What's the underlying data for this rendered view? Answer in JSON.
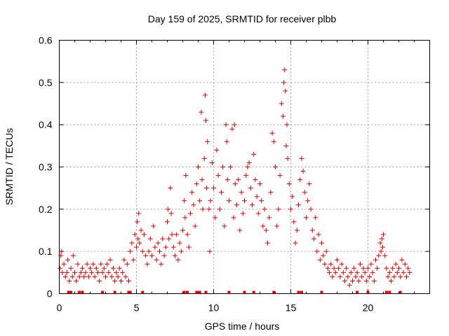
{
  "chart_data": {
    "type": "scatter",
    "title": "Day 159 of 2025, SRMTID for receiver plbb",
    "xlabel": "GPS time / hours",
    "ylabel": "SRMTID / TECUs",
    "xlim": [
      0,
      24
    ],
    "ylim": [
      0,
      0.6
    ],
    "xticks": [
      0,
      5,
      10,
      15,
      20
    ],
    "yticks": [
      0,
      0.1,
      0.2,
      0.3,
      0.4,
      0.5,
      0.6
    ],
    "xtick_labels": [
      "0",
      "5",
      "10",
      "15",
      "20"
    ],
    "ytick_labels": [
      "0",
      "0.1",
      "0.2",
      "0.3",
      "0.4",
      "0.5",
      "0.6"
    ],
    "grid": true,
    "marker": "plus",
    "marker_color": "#e00000",
    "series": [
      {
        "name": "SRMTID",
        "points": [
          [
            0.05,
            0.06
          ],
          [
            0.1,
            0.09
          ],
          [
            0.15,
            0.1
          ],
          [
            0.2,
            0.05
          ],
          [
            0.3,
            0.07
          ],
          [
            0.4,
            0.04
          ],
          [
            0.5,
            0.05
          ],
          [
            0.55,
            0.08
          ],
          [
            0.65,
            0.03
          ],
          [
            0.75,
            0.06
          ],
          [
            0.85,
            0.04
          ],
          [
            0.9,
            0.09
          ],
          [
            1.0,
            0.05
          ],
          [
            1.1,
            0.03
          ],
          [
            1.2,
            0.07
          ],
          [
            1.3,
            0.04
          ],
          [
            1.4,
            0.05
          ],
          [
            1.5,
            0.06
          ],
          [
            1.6,
            0.04
          ],
          [
            1.7,
            0.05
          ],
          [
            1.8,
            0.07
          ],
          [
            1.9,
            0.04
          ],
          [
            2.0,
            0.06
          ],
          [
            2.1,
            0.05
          ],
          [
            2.2,
            0.07
          ],
          [
            2.3,
            0.04
          ],
          [
            2.4,
            0.06
          ],
          [
            2.5,
            0.05
          ],
          [
            2.6,
            0.03
          ],
          [
            2.7,
            0.07
          ],
          [
            2.8,
            0.05
          ],
          [
            2.9,
            0.06
          ],
          [
            3.0,
            0.04
          ],
          [
            3.1,
            0.07
          ],
          [
            3.2,
            0.05
          ],
          [
            3.3,
            0.08
          ],
          [
            3.4,
            0.04
          ],
          [
            3.5,
            0.06
          ],
          [
            3.6,
            0.03
          ],
          [
            3.7,
            0.05
          ],
          [
            3.8,
            0.04
          ],
          [
            3.9,
            0.06
          ],
          [
            4.0,
            0.03
          ],
          [
            4.1,
            0.05
          ],
          [
            4.2,
            0.08
          ],
          [
            4.3,
            0.04
          ],
          [
            4.4,
            0.07
          ],
          [
            4.5,
            0.03
          ],
          [
            4.6,
            0.1
          ],
          [
            4.7,
            0.12
          ],
          [
            4.8,
            0.08
          ],
          [
            4.9,
            0.14
          ],
          [
            5.0,
            0.11
          ],
          [
            5.05,
            0.17
          ],
          [
            5.1,
            0.13
          ],
          [
            5.15,
            0.19
          ],
          [
            5.2,
            0.12
          ],
          [
            5.3,
            0.15
          ],
          [
            5.4,
            0.1
          ],
          [
            5.5,
            0.14
          ],
          [
            5.6,
            0.09
          ],
          [
            5.7,
            0.07
          ],
          [
            5.8,
            0.1
          ],
          [
            5.9,
            0.13
          ],
          [
            6.0,
            0.09
          ],
          [
            6.1,
            0.16
          ],
          [
            6.2,
            0.11
          ],
          [
            6.3,
            0.08
          ],
          [
            6.4,
            0.12
          ],
          [
            6.5,
            0.1
          ],
          [
            6.6,
            0.07
          ],
          [
            6.7,
            0.13
          ],
          [
            6.8,
            0.09
          ],
          [
            6.9,
            0.11
          ],
          [
            7.0,
            0.17
          ],
          [
            7.05,
            0.2
          ],
          [
            7.1,
            0.13
          ],
          [
            7.2,
            0.25
          ],
          [
            7.25,
            0.19
          ],
          [
            7.3,
            0.14
          ],
          [
            7.4,
            0.11
          ],
          [
            7.5,
            0.09
          ],
          [
            7.6,
            0.14
          ],
          [
            7.7,
            0.08
          ],
          [
            7.8,
            0.12
          ],
          [
            7.9,
            0.1
          ],
          [
            8.0,
            0.15
          ],
          [
            8.1,
            0.22
          ],
          [
            8.15,
            0.18
          ],
          [
            8.2,
            0.28
          ],
          [
            8.3,
            0.14
          ],
          [
            8.4,
            0.11
          ],
          [
            8.5,
            0.19
          ],
          [
            8.6,
            0.24
          ],
          [
            8.7,
            0.21
          ],
          [
            8.8,
            0.16
          ],
          [
            8.9,
            0.26
          ],
          [
            9.0,
            0.3
          ],
          [
            9.1,
            0.22
          ],
          [
            9.2,
            0.43
          ],
          [
            9.25,
            0.27
          ],
          [
            9.3,
            0.2
          ],
          [
            9.4,
            0.32
          ],
          [
            9.45,
            0.47
          ],
          [
            9.5,
            0.41
          ],
          [
            9.55,
            0.25
          ],
          [
            9.6,
            0.36
          ],
          [
            9.7,
            0.2
          ],
          [
            9.75,
            0.1
          ],
          [
            9.8,
            0.22
          ],
          [
            9.9,
            0.31
          ],
          [
            10.0,
            0.25
          ],
          [
            10.1,
            0.18
          ],
          [
            10.2,
            0.34
          ],
          [
            10.3,
            0.28
          ],
          [
            10.4,
            0.2
          ],
          [
            10.5,
            0.24
          ],
          [
            10.6,
            0.3
          ],
          [
            10.7,
            0.16
          ],
          [
            10.8,
            0.4
          ],
          [
            10.85,
            0.36
          ],
          [
            10.9,
            0.27
          ],
          [
            11.0,
            0.22
          ],
          [
            11.1,
            0.3
          ],
          [
            11.2,
            0.39
          ],
          [
            11.3,
            0.18
          ],
          [
            11.35,
            0.4
          ],
          [
            11.4,
            0.26
          ],
          [
            11.5,
            0.21
          ],
          [
            11.6,
            0.27
          ],
          [
            11.7,
            0.15
          ],
          [
            11.8,
            0.24
          ],
          [
            11.9,
            0.19
          ],
          [
            12.0,
            0.22
          ],
          [
            12.1,
            0.28
          ],
          [
            12.2,
            0.3
          ],
          [
            12.3,
            0.31
          ],
          [
            12.4,
            0.25
          ],
          [
            12.5,
            0.21
          ],
          [
            12.6,
            0.33
          ],
          [
            12.7,
            0.27
          ],
          [
            12.8,
            0.23
          ],
          [
            12.9,
            0.19
          ],
          [
            13.0,
            0.26
          ],
          [
            13.1,
            0.22
          ],
          [
            13.2,
            0.16
          ],
          [
            13.3,
            0.2
          ],
          [
            13.4,
            0.15
          ],
          [
            13.5,
            0.12
          ],
          [
            13.6,
            0.18
          ],
          [
            13.7,
            0.24
          ],
          [
            13.8,
            0.38
          ],
          [
            13.9,
            0.36
          ],
          [
            14.0,
            0.3
          ],
          [
            14.1,
            0.16
          ],
          [
            14.2,
            0.2
          ],
          [
            14.3,
            0.28
          ],
          [
            14.4,
            0.45
          ],
          [
            14.5,
            0.42
          ],
          [
            14.55,
            0.5
          ],
          [
            14.6,
            0.53
          ],
          [
            14.65,
            0.48
          ],
          [
            14.7,
            0.35
          ],
          [
            14.75,
            0.4
          ],
          [
            14.8,
            0.32
          ],
          [
            14.9,
            0.26
          ],
          [
            15.0,
            0.2
          ],
          [
            15.1,
            0.23
          ],
          [
            15.2,
            0.17
          ],
          [
            15.3,
            0.12
          ],
          [
            15.4,
            0.15
          ],
          [
            15.5,
            0.21
          ],
          [
            15.6,
            0.27
          ],
          [
            15.7,
            0.32
          ],
          [
            15.8,
            0.29
          ],
          [
            15.9,
            0.24
          ],
          [
            16.0,
            0.18
          ],
          [
            16.1,
            0.22
          ],
          [
            16.2,
            0.26
          ],
          [
            16.3,
            0.2
          ],
          [
            16.4,
            0.15
          ],
          [
            16.5,
            0.13
          ],
          [
            16.6,
            0.18
          ],
          [
            16.7,
            0.1
          ],
          [
            16.8,
            0.14
          ],
          [
            16.9,
            0.08
          ],
          [
            17.0,
            0.12
          ],
          [
            17.1,
            0.09
          ],
          [
            17.2,
            0.07
          ],
          [
            17.3,
            0.1
          ],
          [
            17.4,
            0.06
          ],
          [
            17.5,
            0.05
          ],
          [
            17.6,
            0.07
          ],
          [
            17.7,
            0.04
          ],
          [
            17.8,
            0.06
          ],
          [
            17.9,
            0.05
          ],
          [
            18.0,
            0.08
          ],
          [
            18.1,
            0.06
          ],
          [
            18.2,
            0.04
          ],
          [
            18.3,
            0.07
          ],
          [
            18.4,
            0.05
          ],
          [
            18.5,
            0.03
          ],
          [
            18.6,
            0.06
          ],
          [
            18.7,
            0.04
          ],
          [
            18.8,
            0.02
          ],
          [
            18.9,
            0.05
          ],
          [
            19.0,
            0.03
          ],
          [
            19.1,
            0.06
          ],
          [
            19.2,
            0.04
          ],
          [
            19.3,
            0.05
          ],
          [
            19.4,
            0.03
          ],
          [
            19.5,
            0.07
          ],
          [
            19.6,
            0.04
          ],
          [
            19.7,
            0.06
          ],
          [
            19.8,
            0.05
          ],
          [
            19.9,
            0.03
          ],
          [
            20.0,
            0.06
          ],
          [
            20.1,
            0.04
          ],
          [
            20.2,
            0.07
          ],
          [
            20.3,
            0.05
          ],
          [
            20.4,
            0.03
          ],
          [
            20.5,
            0.08
          ],
          [
            20.6,
            0.06
          ],
          [
            20.7,
            0.09
          ],
          [
            20.8,
            0.12
          ],
          [
            20.85,
            0.1
          ],
          [
            20.9,
            0.13
          ],
          [
            20.95,
            0.11
          ],
          [
            21.0,
            0.14
          ],
          [
            21.1,
            0.09
          ],
          [
            21.2,
            0.06
          ],
          [
            21.3,
            0.04
          ],
          [
            21.4,
            0.05
          ],
          [
            21.5,
            0.03
          ],
          [
            21.6,
            0.06
          ],
          [
            21.7,
            0.04
          ],
          [
            21.8,
            0.07
          ],
          [
            21.9,
            0.05
          ],
          [
            22.0,
            0.06
          ],
          [
            22.1,
            0.04
          ],
          [
            22.2,
            0.08
          ],
          [
            22.3,
            0.05
          ],
          [
            22.4,
            0.07
          ],
          [
            22.5,
            0.04
          ],
          [
            22.6,
            0.06
          ],
          [
            22.7,
            0.05
          ]
        ]
      }
    ],
    "gap_markers_x": [
      0.6,
      0.75,
      1.3,
      1.5,
      2.8,
      3.6,
      4.5,
      4.6,
      5.4,
      8.1,
      8.3,
      8.9,
      9.1,
      9.5,
      11.0,
      12.0,
      12.6,
      13.9,
      15.5,
      15.7,
      17.0,
      19.3,
      20.0,
      21.2,
      21.4,
      22.1
    ]
  }
}
